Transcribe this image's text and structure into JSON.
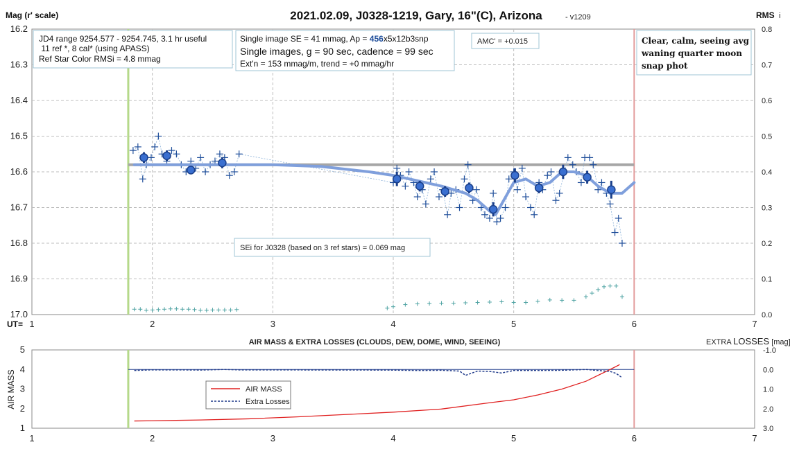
{
  "title": "2021.02.09, J0328-1219, Gary, 16\"(C), Arizona",
  "version": "- v1209",
  "top_chart": {
    "ylabel": "Mag (r' scale)",
    "y2label": "RMS",
    "y2label_suffix": "i",
    "xlabel": "UT=",
    "x_ticks": [
      "1",
      "2",
      "3",
      "4",
      "5",
      "6",
      "7"
    ],
    "y_ticks": [
      "16.2",
      "16.3",
      "16.4",
      "16.5",
      "16.6",
      "16.7",
      "16.8",
      "16.9",
      "17.0"
    ],
    "y2_ticks": [
      "0.8",
      "0.7",
      "0.6",
      "0.5",
      "0.4",
      "0.3",
      "0.2",
      "0.1",
      "0.0"
    ]
  },
  "info_boxes": {
    "box1": [
      "JD4 range 9254.577 - 9254.745, 3.1 hr useful",
      " 11 ref *, 8 cal* (using APASS)",
      "Ref Star Color RMSi = 4.8 mmag"
    ],
    "box2_line1_pre": "Single image SE = 41 mmag, Ap = ",
    "box2_line1_ap": "456",
    "box2_line1_post": "x5x12b3snp",
    "box2_line2": "Single images, g = 90 sec, cadence = 99 sec",
    "box2_line3": "Ext'n = 153 mmag/m, trend = +0 mmag/hr",
    "amc": "AMC' = +0.015",
    "conditions": [
      "Clear, calm, seeing avg",
      "waning quarter moon",
      "snap phot"
    ],
    "sei": "SEi for J0328 (based on 3 ref stars) = 0.069 mag"
  },
  "bottom_chart": {
    "title": "AIR MASS & EXTRA LOSSES (CLOUDS, DEW, DOME, WIND, SEEING)",
    "y2label_pre": "EXTRA ",
    "y2label_big": "LOSSES",
    "y2label_post": " [mag]",
    "ylabel": "AIR MASS",
    "x_ticks": [
      "1",
      "2",
      "3",
      "4",
      "5",
      "6",
      "7"
    ],
    "y_ticks": [
      "5",
      "4",
      "3",
      "2",
      "1"
    ],
    "y2_ticks": [
      "-1.0",
      "0.0",
      "1.0",
      "2.0",
      "3.0"
    ],
    "legend": [
      "AIR MASS",
      "Extra Losses"
    ]
  },
  "colors": {
    "points": "#1f4e9a",
    "binned": "#3a6fd0",
    "trend": "#7f9fdc",
    "reference": "#a6a6a6",
    "rms": "#4fa3a3",
    "start_line": "#b5d98a",
    "end_line": "#e29a9a",
    "airmass": "#e02020",
    "losses": "#1f3a8a"
  },
  "chart_data": [
    {
      "type": "scatter",
      "name": "light-curve",
      "xlabel": "UT",
      "ylabel": "Mag (r' scale)",
      "xlim": [
        1,
        7
      ],
      "ylim": [
        16.2,
        17.0
      ],
      "y_inverted": true,
      "reference_mag": 16.58,
      "start_ut": 1.8,
      "end_ut": 6.0,
      "single_images": {
        "x": [
          1.84,
          1.88,
          1.92,
          1.95,
          1.99,
          2.02,
          2.05,
          2.08,
          2.12,
          2.16,
          2.2,
          2.24,
          2.28,
          2.32,
          2.36,
          2.4,
          2.44,
          2.48,
          2.52,
          2.56,
          2.6,
          2.64,
          2.68,
          2.72,
          4.0,
          4.03,
          4.06,
          4.1,
          4.13,
          4.17,
          4.2,
          4.24,
          4.27,
          4.31,
          4.34,
          4.38,
          4.41,
          4.45,
          4.48,
          4.52,
          4.55,
          4.59,
          4.62,
          4.66,
          4.69,
          4.73,
          4.76,
          4.8,
          4.83,
          4.86,
          4.89,
          4.93,
          4.96,
          5.0,
          5.03,
          5.07,
          5.1,
          5.14,
          5.17,
          5.21,
          5.24,
          5.28,
          5.31,
          5.35,
          5.38,
          5.42,
          5.45,
          5.49,
          5.52,
          5.56,
          5.59,
          5.63,
          5.66,
          5.7,
          5.73,
          5.77,
          5.8,
          5.84,
          5.87,
          5.9
        ],
        "y": [
          16.54,
          16.53,
          16.62,
          16.58,
          16.56,
          16.53,
          16.5,
          16.55,
          16.57,
          16.54,
          16.55,
          16.58,
          16.6,
          16.57,
          16.59,
          16.56,
          16.6,
          16.58,
          16.57,
          16.55,
          16.56,
          16.61,
          16.6,
          16.55,
          16.63,
          16.59,
          16.61,
          16.64,
          16.6,
          16.63,
          16.67,
          16.65,
          16.69,
          16.62,
          16.6,
          16.67,
          16.65,
          16.72,
          16.66,
          16.65,
          16.7,
          16.62,
          16.58,
          16.68,
          16.65,
          16.7,
          16.72,
          16.73,
          16.66,
          16.74,
          16.73,
          16.7,
          16.62,
          16.6,
          16.65,
          16.59,
          16.67,
          16.7,
          16.72,
          16.63,
          16.65,
          16.61,
          16.6,
          16.68,
          16.66,
          16.6,
          16.56,
          16.58,
          16.6,
          16.63,
          16.56,
          16.56,
          16.58,
          16.65,
          16.63,
          16.66,
          16.69,
          16.77,
          16.73,
          16.8
        ]
      },
      "binned": {
        "x": [
          1.93,
          2.12,
          2.32,
          2.58,
          4.03,
          4.22,
          4.43,
          4.63,
          4.83,
          5.01,
          5.21,
          5.41,
          5.61,
          5.81
        ],
        "y": [
          16.56,
          16.555,
          16.595,
          16.575,
          16.62,
          16.64,
          16.655,
          16.645,
          16.705,
          16.61,
          16.645,
          16.6,
          16.615,
          16.65
        ],
        "err": [
          0.015,
          0.015,
          0.012,
          0.015,
          0.02,
          0.015,
          0.015,
          0.015,
          0.02,
          0.02,
          0.015,
          0.02,
          0.018,
          0.025
        ]
      },
      "trend": {
        "x": [
          1.85,
          2.2,
          2.6,
          3.0,
          3.4,
          3.8,
          4.0,
          4.2,
          4.4,
          4.6,
          4.7,
          4.8,
          4.85,
          4.9,
          5.0,
          5.1,
          5.2,
          5.3,
          5.4,
          5.5,
          5.6,
          5.7,
          5.8,
          5.9,
          6.0
        ],
        "y": [
          16.58,
          16.58,
          16.58,
          16.58,
          16.585,
          16.6,
          16.61,
          16.625,
          16.64,
          16.66,
          16.68,
          16.71,
          16.72,
          16.69,
          16.63,
          16.62,
          16.64,
          16.63,
          16.6,
          16.6,
          16.61,
          16.64,
          16.66,
          16.66,
          16.63
        ]
      },
      "rms_series": {
        "x": [
          1.85,
          1.9,
          1.95,
          2.0,
          2.05,
          2.1,
          2.15,
          2.2,
          2.25,
          2.3,
          2.35,
          2.4,
          2.45,
          2.5,
          2.55,
          2.6,
          2.65,
          2.7,
          3.95,
          4.0,
          4.1,
          4.2,
          4.3,
          4.4,
          4.5,
          4.6,
          4.7,
          4.8,
          4.9,
          5.0,
          5.1,
          5.2,
          5.3,
          5.4,
          5.5,
          5.6,
          5.65,
          5.7,
          5.75,
          5.8,
          5.85,
          5.9
        ],
        "y": [
          0.015,
          0.015,
          0.012,
          0.013,
          0.014,
          0.015,
          0.016,
          0.016,
          0.015,
          0.015,
          0.014,
          0.012,
          0.012,
          0.013,
          0.013,
          0.013,
          0.013,
          0.014,
          0.018,
          0.022,
          0.028,
          0.03,
          0.031,
          0.032,
          0.032,
          0.033,
          0.034,
          0.035,
          0.036,
          0.034,
          0.034,
          0.037,
          0.041,
          0.04,
          0.04,
          0.05,
          0.06,
          0.07,
          0.078,
          0.08,
          0.08,
          0.05
        ]
      }
    },
    {
      "type": "line",
      "name": "air-mass-extra-losses",
      "xlim": [
        1,
        7
      ],
      "ylim": [
        1,
        5
      ],
      "y2lim": [
        -1.0,
        3.0
      ],
      "series": [
        {
          "name": "AIR MASS",
          "x": [
            1.85,
            2.0,
            2.4,
            2.8,
            3.2,
            3.6,
            4.0,
            4.4,
            4.8,
            5.0,
            5.2,
            5.4,
            5.6,
            5.8,
            5.88
          ],
          "y": [
            1.37,
            1.38,
            1.42,
            1.48,
            1.58,
            1.7,
            1.82,
            1.98,
            2.3,
            2.45,
            2.7,
            3.0,
            3.4,
            4.0,
            4.25
          ]
        },
        {
          "name": "Extra Losses",
          "x": [
            1.85,
            2.0,
            2.2,
            2.4,
            2.6,
            2.72,
            3.95,
            4.2,
            4.4,
            4.55,
            4.6,
            4.7,
            4.8,
            4.9,
            5.0,
            5.2,
            5.4,
            5.6,
            5.7,
            5.8,
            5.85,
            5.9
          ],
          "y": [
            0.05,
            0.02,
            0.02,
            0.03,
            0.0,
            0.02,
            0.03,
            0.05,
            0.04,
            0.08,
            0.3,
            0.08,
            0.1,
            0.18,
            0.05,
            0.05,
            0.04,
            0.0,
            0.05,
            0.1,
            0.2,
            0.42
          ]
        }
      ]
    }
  ]
}
